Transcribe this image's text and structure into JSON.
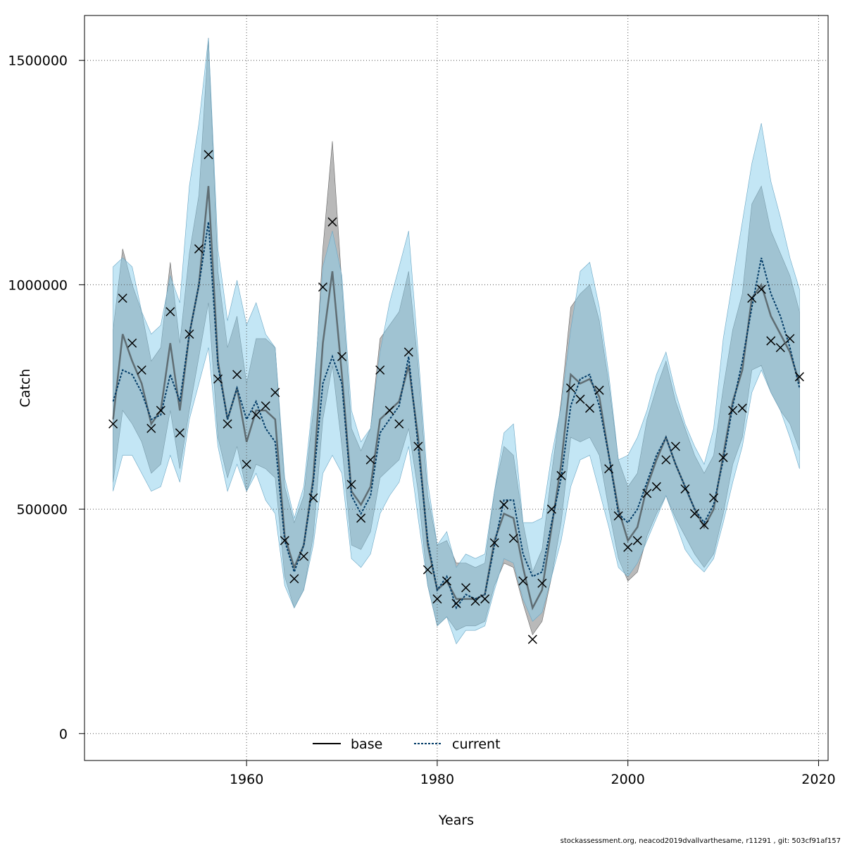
{
  "chart_data": {
    "type": "line",
    "xlabel": "Years",
    "ylabel": "Catch",
    "xlim": [
      1943,
      2021
    ],
    "ylim": [
      -60000,
      1600000
    ],
    "x_ticks": [
      1960,
      1980,
      2000,
      2020
    ],
    "y_ticks": [
      0,
      500000,
      1000000,
      1500000
    ],
    "x_tick_labels": [
      "1960",
      "1980",
      "2000",
      "2020"
    ],
    "y_tick_labels": [
      "0",
      "500000",
      "1000000",
      "1500000"
    ],
    "grid": true,
    "legend_position": "bottom-center",
    "colors": {
      "base_line": "#333333",
      "base_band": "#808080",
      "current_line": "#003a66",
      "current_band": "#87ceeb",
      "observed_marker": "#000000",
      "grid": "#555555"
    },
    "x": [
      1946,
      1947,
      1948,
      1949,
      1950,
      1951,
      1952,
      1953,
      1954,
      1955,
      1956,
      1957,
      1958,
      1959,
      1960,
      1961,
      1962,
      1963,
      1964,
      1965,
      1966,
      1967,
      1968,
      1969,
      1970,
      1971,
      1972,
      1973,
      1974,
      1975,
      1976,
      1977,
      1978,
      1979,
      1980,
      1981,
      1982,
      1983,
      1984,
      1985,
      1986,
      1987,
      1988,
      1989,
      1990,
      1991,
      1992,
      1993,
      1994,
      1995,
      1996,
      1997,
      1998,
      1999,
      2000,
      2001,
      2002,
      2003,
      2004,
      2005,
      2006,
      2007,
      2008,
      2009,
      2010,
      2011,
      2012,
      2013,
      2014,
      2015,
      2016,
      2017,
      2018
    ],
    "series": [
      {
        "name": "base",
        "values": [
          700000,
          890000,
          830000,
          780000,
          690000,
          720000,
          870000,
          720000,
          890000,
          1000000,
          1220000,
          830000,
          700000,
          770000,
          650000,
          720000,
          720000,
          700000,
          440000,
          370000,
          420000,
          570000,
          870000,
          1030000,
          800000,
          540000,
          510000,
          550000,
          700000,
          720000,
          740000,
          820000,
          660000,
          420000,
          320000,
          340000,
          300000,
          300000,
          300000,
          310000,
          430000,
          490000,
          480000,
          370000,
          280000,
          320000,
          460000,
          600000,
          800000,
          780000,
          790000,
          750000,
          620000,
          500000,
          430000,
          460000,
          550000,
          610000,
          660000,
          600000,
          550000,
          500000,
          460000,
          500000,
          620000,
          740000,
          810000,
          970000,
          1000000,
          930000,
          890000,
          850000,
          780000
        ],
        "lower": [
          560000,
          720000,
          690000,
          650000,
          580000,
          600000,
          720000,
          590000,
          720000,
          840000,
          960000,
          660000,
          570000,
          640000,
          540000,
          600000,
          590000,
          570000,
          350000,
          280000,
          320000,
          440000,
          700000,
          820000,
          640000,
          420000,
          410000,
          450000,
          570000,
          590000,
          610000,
          680000,
          540000,
          330000,
          240000,
          260000,
          230000,
          240000,
          240000,
          250000,
          330000,
          380000,
          370000,
          290000,
          220000,
          250000,
          350000,
          470000,
          660000,
          650000,
          660000,
          620000,
          500000,
          390000,
          340000,
          360000,
          440000,
          490000,
          530000,
          480000,
          440000,
          400000,
          370000,
          400000,
          490000,
          600000,
          660000,
          810000,
          820000,
          760000,
          720000,
          690000,
          630000
        ],
        "upper": [
          900000,
          1080000,
          1000000,
          940000,
          830000,
          860000,
          1050000,
          870000,
          1070000,
          1200000,
          1550000,
          1030000,
          860000,
          930000,
          780000,
          880000,
          880000,
          860000,
          550000,
          470000,
          530000,
          720000,
          1080000,
          1320000,
          1000000,
          680000,
          630000,
          680000,
          880000,
          910000,
          940000,
          1030000,
          820000,
          530000,
          420000,
          430000,
          380000,
          380000,
          370000,
          380000,
          540000,
          640000,
          620000,
          470000,
          360000,
          410000,
          580000,
          740000,
          950000,
          980000,
          1000000,
          920000,
          780000,
          610000,
          550000,
          580000,
          700000,
          770000,
          830000,
          740000,
          680000,
          620000,
          580000,
          620000,
          770000,
          900000,
          980000,
          1180000,
          1220000,
          1120000,
          1070000,
          1020000,
          940000
        ]
      },
      {
        "name": "current",
        "values": [
          740000,
          810000,
          800000,
          760000,
          700000,
          710000,
          800000,
          740000,
          890000,
          1000000,
          1140000,
          820000,
          700000,
          770000,
          700000,
          740000,
          680000,
          650000,
          430000,
          360000,
          420000,
          560000,
          780000,
          840000,
          780000,
          530000,
          490000,
          530000,
          670000,
          700000,
          730000,
          840000,
          640000,
          430000,
          320000,
          350000,
          280000,
          310000,
          300000,
          310000,
          420000,
          520000,
          520000,
          400000,
          350000,
          360000,
          470000,
          570000,
          730000,
          790000,
          800000,
          730000,
          620000,
          490000,
          470000,
          500000,
          560000,
          620000,
          660000,
          600000,
          550000,
          500000,
          470000,
          510000,
          610000,
          730000,
          830000,
          950000,
          1060000,
          980000,
          930000,
          860000,
          770000
        ],
        "lower": [
          540000,
          620000,
          620000,
          580000,
          540000,
          550000,
          620000,
          560000,
          700000,
          780000,
          860000,
          640000,
          540000,
          600000,
          540000,
          580000,
          520000,
          490000,
          330000,
          280000,
          320000,
          420000,
          580000,
          620000,
          580000,
          390000,
          370000,
          400000,
          490000,
          530000,
          560000,
          640000,
          480000,
          330000,
          240000,
          260000,
          200000,
          230000,
          230000,
          240000,
          320000,
          390000,
          380000,
          300000,
          250000,
          270000,
          350000,
          430000,
          550000,
          610000,
          620000,
          540000,
          460000,
          370000,
          350000,
          380000,
          430000,
          480000,
          530000,
          470000,
          410000,
          380000,
          360000,
          390000,
          470000,
          560000,
          640000,
          760000,
          810000,
          760000,
          720000,
          660000,
          590000
        ],
        "upper": [
          1040000,
          1060000,
          1040000,
          940000,
          890000,
          910000,
          1020000,
          960000,
          1220000,
          1360000,
          1550000,
          1080000,
          920000,
          1010000,
          910000,
          960000,
          890000,
          860000,
          570000,
          480000,
          550000,
          750000,
          1040000,
          1120000,
          1020000,
          720000,
          650000,
          680000,
          850000,
          960000,
          1040000,
          1120000,
          850000,
          560000,
          420000,
          450000,
          370000,
          400000,
          390000,
          400000,
          540000,
          670000,
          690000,
          470000,
          470000,
          480000,
          620000,
          730000,
          900000,
          1030000,
          1050000,
          950000,
          800000,
          610000,
          620000,
          660000,
          720000,
          800000,
          850000,
          760000,
          690000,
          640000,
          600000,
          680000,
          880000,
          1010000,
          1140000,
          1270000,
          1360000,
          1230000,
          1150000,
          1060000,
          990000
        ]
      }
    ],
    "observed": {
      "name": "observed catch",
      "x": [
        1946,
        1947,
        1948,
        1949,
        1950,
        1951,
        1952,
        1953,
        1954,
        1955,
        1956,
        1957,
        1958,
        1959,
        1960,
        1961,
        1962,
        1963,
        1964,
        1965,
        1966,
        1967,
        1968,
        1969,
        1970,
        1971,
        1972,
        1973,
        1974,
        1975,
        1976,
        1977,
        1978,
        1979,
        1980,
        1981,
        1982,
        1983,
        1984,
        1985,
        1986,
        1987,
        1988,
        1989,
        1990,
        1991,
        1992,
        1993,
        1994,
        1995,
        1996,
        1997,
        1998,
        1999,
        2000,
        2001,
        2002,
        2003,
        2004,
        2005,
        2006,
        2007,
        2008,
        2009,
        2010,
        2011,
        2012,
        2013,
        2014,
        2015,
        2016,
        2017,
        2018
      ],
      "values": [
        690000,
        970000,
        870000,
        810000,
        680000,
        720000,
        940000,
        670000,
        890000,
        1080000,
        1290000,
        790000,
        690000,
        800000,
        600000,
        710000,
        730000,
        760000,
        430000,
        345000,
        395000,
        525000,
        995000,
        1140000,
        840000,
        555000,
        480000,
        610000,
        810000,
        720000,
        690000,
        850000,
        640000,
        365000,
        300000,
        340000,
        290000,
        325000,
        295000,
        300000,
        425000,
        510000,
        435000,
        340000,
        210000,
        335000,
        500000,
        575000,
        770000,
        745000,
        725000,
        765000,
        590000,
        485000,
        415000,
        430000,
        535000,
        550000,
        610000,
        640000,
        545000,
        490000,
        465000,
        525000,
        615000,
        720000,
        725000,
        970000,
        990000,
        875000,
        860000,
        880000,
        795000
      ]
    }
  },
  "footer": "stockassessment.org, neacod2019dvallvarthesame, r11291 , git: 503cf91af157"
}
